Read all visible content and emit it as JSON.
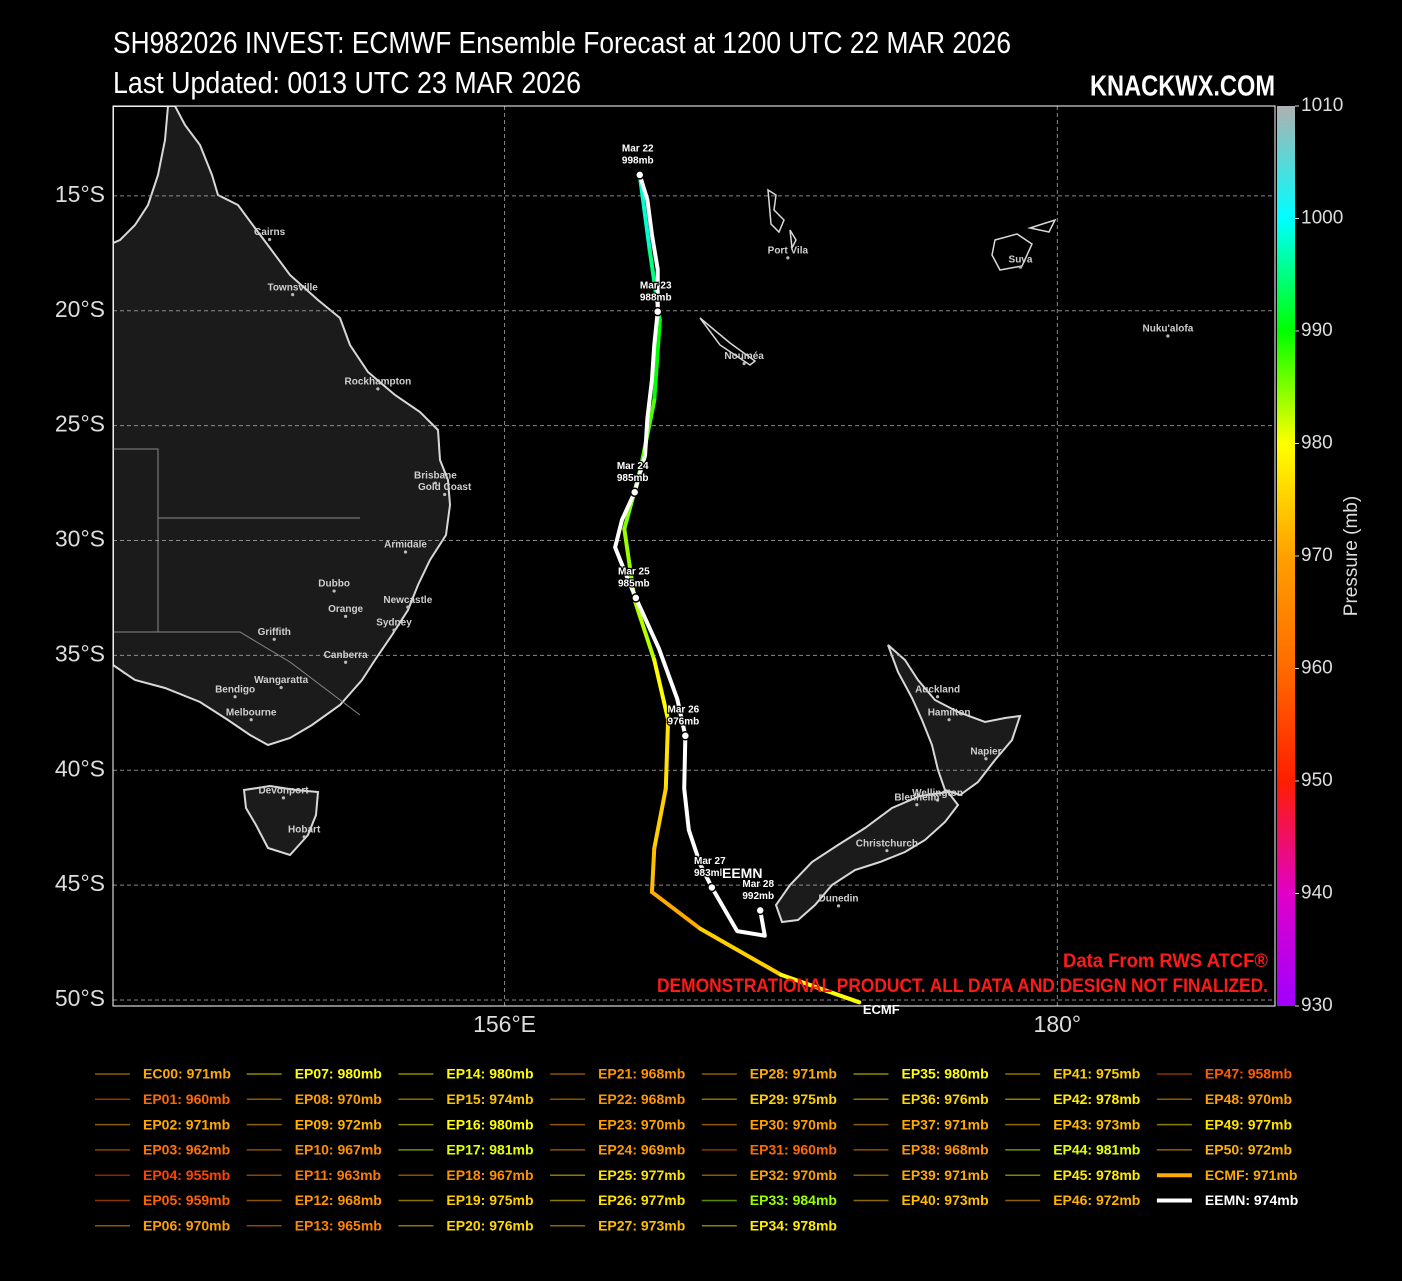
{
  "chart_data": {
    "type": "track_map",
    "title": "SH982026 INVEST: ECMWF Ensemble Forecast at 1200 UTC 22 MAR 2026",
    "subtitle": "Last Updated: 0013 UTC 23 MAR 2026",
    "brand": "KNACKWX.COM",
    "credit": "Data From RWS ATCF®",
    "disclaimer": "DEMONSTRATIONAL PRODUCT. ALL DATA AND DESIGN NOT FINALIZED.",
    "xlim": [
      139,
      189.45
    ],
    "ylim": [
      -50.26,
      -11.09
    ],
    "xticks": [
      {
        "value": 156,
        "label": "156°E"
      },
      {
        "value": 180,
        "label": "180°"
      }
    ],
    "yticks": [
      {
        "value": -15,
        "label": "15°S"
      },
      {
        "value": -20,
        "label": "20°S"
      },
      {
        "value": -25,
        "label": "25°S"
      },
      {
        "value": -30,
        "label": "30°S"
      },
      {
        "value": -35,
        "label": "35°S"
      },
      {
        "value": -40,
        "label": "40°S"
      },
      {
        "value": -45,
        "label": "45°S"
      },
      {
        "value": -50,
        "label": "50°S"
      }
    ],
    "grid": true,
    "colorbar": {
      "label": "Pressure (mb)",
      "range": [
        930,
        1010
      ],
      "ticks": [
        930,
        940,
        950,
        960,
        970,
        980,
        990,
        1000,
        1010
      ],
      "colors": [
        {
          "value": 930,
          "color": "#a000ff"
        },
        {
          "value": 940,
          "color": "#e000c8"
        },
        {
          "value": 950,
          "color": "#ff1e00"
        },
        {
          "value": 960,
          "color": "#ff6a00"
        },
        {
          "value": 970,
          "color": "#ffa000"
        },
        {
          "value": 980,
          "color": "#ffff00"
        },
        {
          "value": 990,
          "color": "#00ff00"
        },
        {
          "value": 1000,
          "color": "#00ffff"
        },
        {
          "value": 1010,
          "color": "#b0b0b0"
        }
      ]
    },
    "places": [
      {
        "name": "Cairns",
        "lon": 145.8,
        "lat": -16.9
      },
      {
        "name": "Townsville",
        "lon": 146.8,
        "lat": -19.3
      },
      {
        "name": "Rockhampton",
        "lon": 150.5,
        "lat": -23.4
      },
      {
        "name": "Brisbane",
        "lon": 153.0,
        "lat": -27.5
      },
      {
        "name": "Gold Coast",
        "lon": 153.4,
        "lat": -28.0
      },
      {
        "name": "Armidale",
        "lon": 151.7,
        "lat": -30.5
      },
      {
        "name": "Dubbo",
        "lon": 148.6,
        "lat": -32.2
      },
      {
        "name": "Orange",
        "lon": 149.1,
        "lat": -33.3
      },
      {
        "name": "Newcastle",
        "lon": 151.8,
        "lat": -32.9
      },
      {
        "name": "Sydney",
        "lon": 151.2,
        "lat": -33.9
      },
      {
        "name": "Griffith",
        "lon": 146.0,
        "lat": -34.3
      },
      {
        "name": "Canberra",
        "lon": 149.1,
        "lat": -35.3
      },
      {
        "name": "Wangaratta",
        "lon": 146.3,
        "lat": -36.4
      },
      {
        "name": "Bendigo",
        "lon": 144.3,
        "lat": -36.8
      },
      {
        "name": "Melbourne",
        "lon": 145.0,
        "lat": -37.8
      },
      {
        "name": "Devonport",
        "lon": 146.4,
        "lat": -41.2
      },
      {
        "name": "Hobart",
        "lon": 147.3,
        "lat": -42.9
      },
      {
        "name": "Port Vila",
        "lon": 168.3,
        "lat": -17.7
      },
      {
        "name": "Nouméa",
        "lon": 166.4,
        "lat": -22.3
      },
      {
        "name": "Suva",
        "lon": 178.4,
        "lat": -18.1
      },
      {
        "name": "Nuku'alofa",
        "lon": 184.8,
        "lat": -21.1
      },
      {
        "name": "Auckland",
        "lon": 174.8,
        "lat": -36.8
      },
      {
        "name": "Hamilton",
        "lon": 175.3,
        "lat": -37.8
      },
      {
        "name": "Napier",
        "lon": 176.9,
        "lat": -39.5
      },
      {
        "name": "Wellington",
        "lon": 174.8,
        "lat": -41.3
      },
      {
        "name": "Blenheim",
        "lon": 173.9,
        "lat": -41.5
      },
      {
        "name": "Christchurch",
        "lon": 172.6,
        "lat": -43.5
      },
      {
        "name": "Dunedin",
        "lon": 170.5,
        "lat": -45.9
      }
    ],
    "ecmf": {
      "name": "ECMF",
      "lon": [
        161.87,
        162.3,
        162.74,
        162.5,
        161.9,
        161.2,
        161.65,
        162.5,
        163.1,
        163.0,
        162.5,
        162.4,
        164.5,
        168.0,
        171.4
      ],
      "lat": [
        -14.09,
        -17.35,
        -20.4,
        -23.9,
        -26.9,
        -29.5,
        -32.6,
        -35.2,
        -37.8,
        -40.8,
        -43.4,
        -45.3,
        -46.9,
        -48.9,
        -50.1
      ],
      "pressure": [
        998,
        995,
        990,
        987,
        985,
        984,
        983,
        980,
        977,
        975,
        973,
        971,
        975,
        980,
        985
      ]
    },
    "eemn": {
      "name": "EEMN",
      "color": "#ffffff",
      "lon": [
        161.87,
        162.2,
        162.4,
        162.65,
        162.65,
        162.5,
        162.4,
        162.2,
        162.1,
        161.65,
        161.1,
        160.8,
        161.2,
        161.7,
        162.7,
        163.5,
        163.85,
        163.8,
        164.0,
        164.5,
        165.0,
        166.1,
        167.3,
        167.1
      ],
      "lat": [
        -14.09,
        -15.17,
        -16.7,
        -18.2,
        -20.04,
        -21.5,
        -23.0,
        -24.7,
        -26.3,
        -27.9,
        -29.1,
        -30.3,
        -31.3,
        -32.5,
        -34.7,
        -36.9,
        -38.5,
        -40.8,
        -42.6,
        -44.1,
        -45.1,
        -47.0,
        -47.2,
        -46.1
      ],
      "labeled_points": [
        {
          "date": "Mar 22",
          "label": "998mb",
          "lon": 161.87,
          "lat": -14.09
        },
        {
          "date": "Mar 23",
          "label": "988mb",
          "lon": 162.65,
          "lat": -20.04
        },
        {
          "date": "Mar 24",
          "label": "985mb",
          "lon": 161.65,
          "lat": -27.9
        },
        {
          "date": "Mar 25",
          "label": "985mb",
          "lon": 161.7,
          "lat": -32.5
        },
        {
          "date": "Mar 26",
          "label": "976mb",
          "lon": 163.85,
          "lat": -38.5
        },
        {
          "date": "Mar 27",
          "label": "983mb",
          "lon": 165.0,
          "lat": -45.1
        },
        {
          "date": "Mar 28",
          "label": "992mb",
          "lon": 167.1,
          "lat": -46.1
        }
      ]
    },
    "legend": [
      {
        "name": "EC00",
        "min_pressure": 971,
        "label": "EC00: 971mb"
      },
      {
        "name": "EP01",
        "min_pressure": 960,
        "label": "EP01: 960mb"
      },
      {
        "name": "EP02",
        "min_pressure": 971,
        "label": "EP02: 971mb"
      },
      {
        "name": "EP03",
        "min_pressure": 962,
        "label": "EP03: 962mb"
      },
      {
        "name": "EP04",
        "min_pressure": 955,
        "label": "EP04: 955mb"
      },
      {
        "name": "EP05",
        "min_pressure": 959,
        "label": "EP05: 959mb"
      },
      {
        "name": "EP06",
        "min_pressure": 970,
        "label": "EP06: 970mb"
      },
      {
        "name": "EP07",
        "min_pressure": 980,
        "label": "EP07: 980mb"
      },
      {
        "name": "EP08",
        "min_pressure": 970,
        "label": "EP08: 970mb"
      },
      {
        "name": "EP09",
        "min_pressure": 972,
        "label": "EP09: 972mb"
      },
      {
        "name": "EP10",
        "min_pressure": 967,
        "label": "EP10: 967mb"
      },
      {
        "name": "EP11",
        "min_pressure": 963,
        "label": "EP11: 963mb"
      },
      {
        "name": "EP12",
        "min_pressure": 968,
        "label": "EP12: 968mb"
      },
      {
        "name": "EP13",
        "min_pressure": 965,
        "label": "EP13: 965mb"
      },
      {
        "name": "EP14",
        "min_pressure": 980,
        "label": "EP14: 980mb"
      },
      {
        "name": "EP15",
        "min_pressure": 974,
        "label": "EP15: 974mb"
      },
      {
        "name": "EP16",
        "min_pressure": 980,
        "label": "EP16: 980mb"
      },
      {
        "name": "EP17",
        "min_pressure": 981,
        "label": "EP17: 981mb"
      },
      {
        "name": "EP18",
        "min_pressure": 967,
        "label": "EP18: 967mb"
      },
      {
        "name": "EP19",
        "min_pressure": 975,
        "label": "EP19: 975mb"
      },
      {
        "name": "EP20",
        "min_pressure": 976,
        "label": "EP20: 976mb"
      },
      {
        "name": "EP21",
        "min_pressure": 968,
        "label": "EP21: 968mb"
      },
      {
        "name": "EP22",
        "min_pressure": 968,
        "label": "EP22: 968mb"
      },
      {
        "name": "EP23",
        "min_pressure": 970,
        "label": "EP23: 970mb"
      },
      {
        "name": "EP24",
        "min_pressure": 969,
        "label": "EP24: 969mb"
      },
      {
        "name": "EP25",
        "min_pressure": 977,
        "label": "EP25: 977mb"
      },
      {
        "name": "EP26",
        "min_pressure": 977,
        "label": "EP26: 977mb"
      },
      {
        "name": "EP27",
        "min_pressure": 973,
        "label": "EP27: 973mb"
      },
      {
        "name": "EP28",
        "min_pressure": 971,
        "label": "EP28: 971mb"
      },
      {
        "name": "EP29",
        "min_pressure": 975,
        "label": "EP29: 975mb"
      },
      {
        "name": "EP30",
        "min_pressure": 970,
        "label": "EP30: 970mb"
      },
      {
        "name": "EP31",
        "min_pressure": 960,
        "label": "EP31: 960mb"
      },
      {
        "name": "EP32",
        "min_pressure": 970,
        "label": "EP32: 970mb"
      },
      {
        "name": "EP33",
        "min_pressure": 984,
        "label": "EP33: 984mb"
      },
      {
        "name": "EP34",
        "min_pressure": 978,
        "label": "EP34: 978mb"
      },
      {
        "name": "EP35",
        "min_pressure": 980,
        "label": "EP35: 980mb"
      },
      {
        "name": "EP36",
        "min_pressure": 976,
        "label": "EP36: 976mb"
      },
      {
        "name": "EP37",
        "min_pressure": 971,
        "label": "EP37: 971mb"
      },
      {
        "name": "EP38",
        "min_pressure": 968,
        "label": "EP38: 968mb"
      },
      {
        "name": "EP39",
        "min_pressure": 971,
        "label": "EP39: 971mb"
      },
      {
        "name": "EP40",
        "min_pressure": 973,
        "label": "EP40: 973mb"
      },
      {
        "name": "EP41",
        "min_pressure": 975,
        "label": "EP41: 975mb"
      },
      {
        "name": "EP42",
        "min_pressure": 978,
        "label": "EP42: 978mb"
      },
      {
        "name": "EP43",
        "min_pressure": 973,
        "label": "EP43: 973mb"
      },
      {
        "name": "EP44",
        "min_pressure": 981,
        "label": "EP44: 981mb"
      },
      {
        "name": "EP45",
        "min_pressure": 978,
        "label": "EP45: 978mb"
      },
      {
        "name": "EP46",
        "min_pressure": 972,
        "label": "EP46: 972mb"
      },
      {
        "name": "EP47",
        "min_pressure": 958,
        "label": "EP47: 958mb"
      },
      {
        "name": "EP48",
        "min_pressure": 970,
        "label": "EP48: 970mb"
      },
      {
        "name": "EP49",
        "min_pressure": 977,
        "label": "EP49: 977mb"
      },
      {
        "name": "EP50",
        "min_pressure": 972,
        "label": "EP50: 972mb"
      },
      {
        "name": "ECMF",
        "min_pressure": 971,
        "label": "ECMF: 971mb"
      },
      {
        "name": "EEMN",
        "min_pressure": 974,
        "label": "EEMN: 974mb",
        "color": "#ffffff"
      }
    ]
  }
}
